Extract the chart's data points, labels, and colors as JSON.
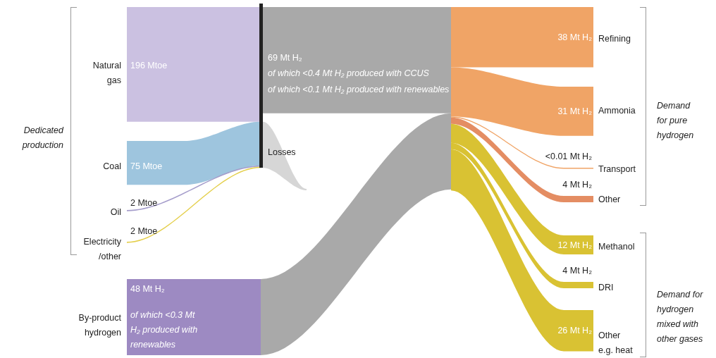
{
  "chart_data": {
    "type": "other",
    "categories": [
      "Natural\ngas",
      "Coal",
      "Oil",
      "Electricity\n/other",
      "By-product\nhydrogen",
      "Refining",
      "Ammonia",
      "Transport",
      "Other",
      "Methanol",
      "DRI",
      "Other\ne.g. heat"
    ],
    "values": [
      196,
      75,
      2,
      2,
      48,
      38,
      31,
      0.01,
      4,
      12,
      4,
      26
    ],
    "value_labels": [
      "196 Mtoe",
      "75 Mtoe",
      "2 Mtoe",
      "2 Mtoe",
      "48 Mt H₂",
      "38 Mt H₂",
      "31 Mt H₂",
      "<0.01 Mt H₂",
      "4 Mt H₂",
      "12 Mt H₂",
      "4 Mt H₂",
      "26 Mt H₂"
    ],
    "colors": [
      "#cbc1e1",
      "#9ec5de",
      "#a59dcb",
      "#e4cf4c",
      "#9d8ac2",
      "#f0a466",
      "#f0a466",
      "#f0a466",
      "#e48d63",
      "#d9c233",
      "#d9c233",
      "#d9c233"
    ],
    "annotations": [
      "Dedicated\nproduction",
      "Losses",
      "69 Mt H₂",
      "of which <0.4 Mt H₂ produced with CCUS",
      "of which <0.1 Mt H₂ produced with renewables",
      "of which <0.3 Mt\nH₂ produced with\nrenewables",
      "Demand\nfor pure\nhydrogen",
      "Demand for\nhydrogen\nmixed with\nother gases"
    ]
  }
}
